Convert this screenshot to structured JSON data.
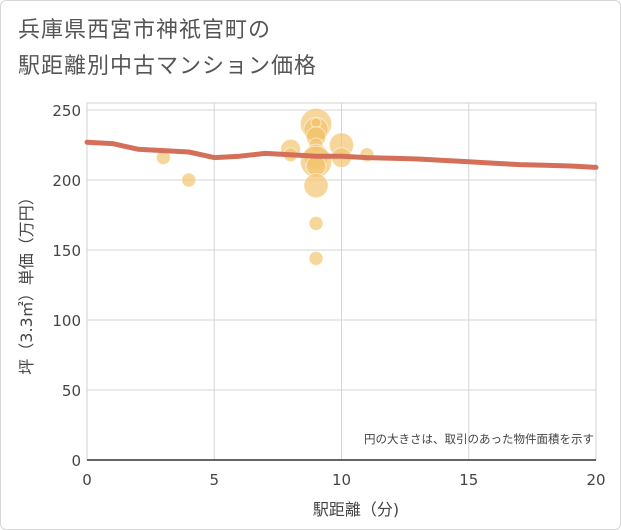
{
  "title_lines": [
    "兵庫県西宮市神祇官町の",
    "駅距離別中古マンション価格"
  ],
  "chart_data": {
    "type": "scatter",
    "title": "兵庫県西宮市神祇官町の駅距離別中古マンション価格",
    "xlabel": "駅距離（分)",
    "ylabel": "坪（3.3㎡）単価（万円）",
    "xlim": [
      0,
      20
    ],
    "ylim": [
      0,
      255
    ],
    "x_ticks": [
      0,
      5,
      10,
      15,
      20
    ],
    "y_ticks": [
      0,
      50,
      100,
      150,
      200,
      250
    ],
    "grid": true,
    "note": "円の大きさは、取引のあった物件面積を示す",
    "bubble_color": "#f3c26b",
    "trend_color": "#d4705a",
    "points": [
      {
        "x": 3,
        "y": 216,
        "size": 1
      },
      {
        "x": 4,
        "y": 200,
        "size": 1
      },
      {
        "x": 8,
        "y": 222,
        "size": 2
      },
      {
        "x": 8,
        "y": 218,
        "size": 1
      },
      {
        "x": 9,
        "y": 240,
        "size": 5
      },
      {
        "x": 9,
        "y": 236,
        "size": 3
      },
      {
        "x": 9,
        "y": 241,
        "size": 0.5
      },
      {
        "x": 9,
        "y": 231,
        "size": 2
      },
      {
        "x": 9,
        "y": 225,
        "size": 1
      },
      {
        "x": 9,
        "y": 217,
        "size": 3
      },
      {
        "x": 9,
        "y": 213,
        "size": 5
      },
      {
        "x": 9,
        "y": 210,
        "size": 2
      },
      {
        "x": 9,
        "y": 196,
        "size": 3
      },
      {
        "x": 9,
        "y": 169,
        "size": 1
      },
      {
        "x": 9,
        "y": 144,
        "size": 1
      },
      {
        "x": 10,
        "y": 225,
        "size": 3
      },
      {
        "x": 10,
        "y": 216,
        "size": 2
      },
      {
        "x": 11,
        "y": 218,
        "size": 1
      }
    ],
    "trend": {
      "x": [
        0,
        1,
        2,
        3,
        4,
        5,
        6,
        7,
        8,
        9,
        10,
        11,
        12,
        13,
        14,
        15,
        16,
        17,
        18,
        19,
        20
      ],
      "y": [
        227,
        226,
        222,
        221,
        220,
        216,
        217,
        219,
        218,
        217,
        217,
        216,
        215.5,
        215,
        214,
        213,
        212,
        211,
        210.5,
        210,
        209
      ]
    }
  }
}
